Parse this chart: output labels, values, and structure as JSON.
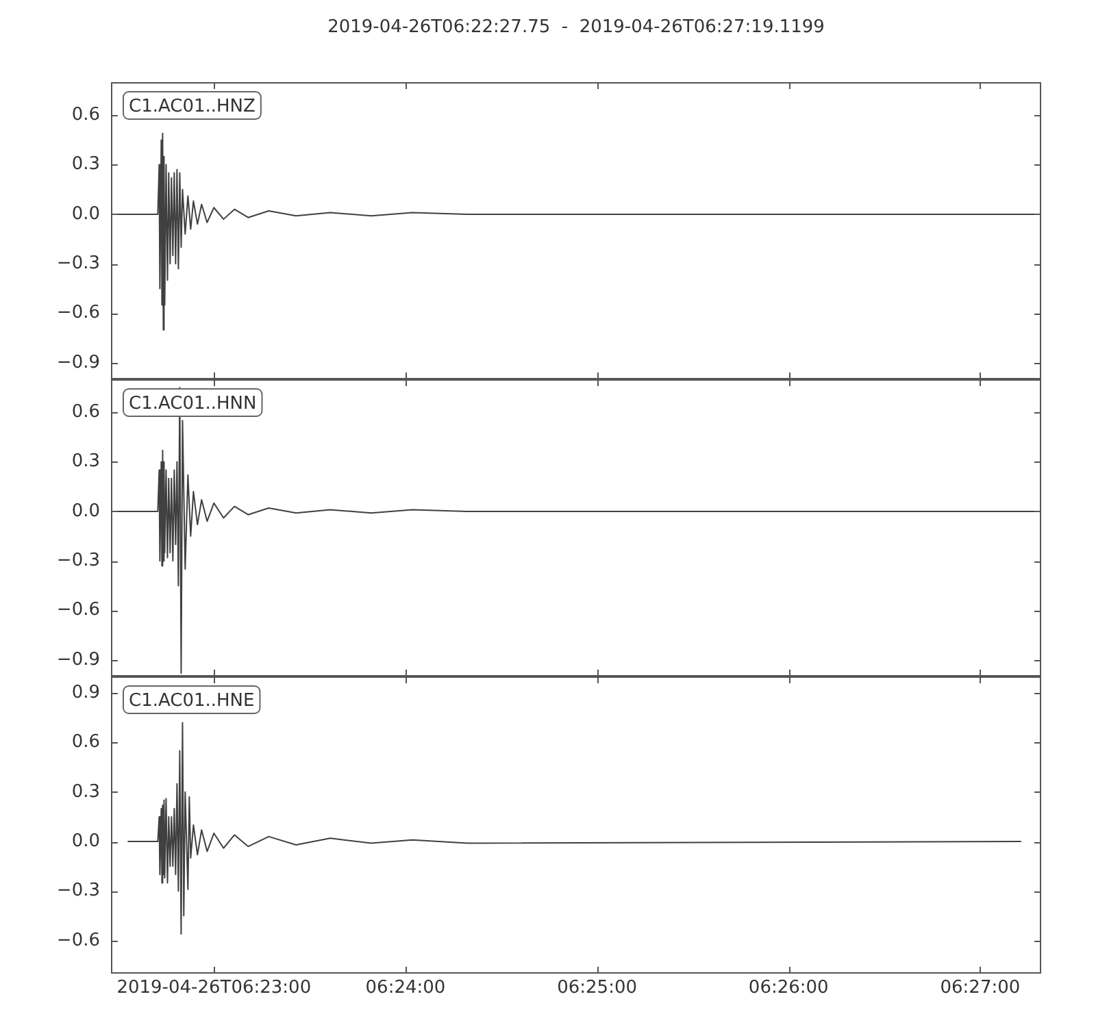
{
  "chart_data": [
    {
      "type": "line",
      "title": "2019-04-26T06:22:27.75  -  2019-04-26T06:27:19.1199",
      "annotations": [
        "C1.AC01..HNZ"
      ],
      "color": "#404040",
      "tick_labels": "y",
      "x": [
        6.37452,
        6.37845,
        6.37857,
        6.37863,
        6.37875,
        6.37881,
        6.37887,
        6.37893,
        6.37899,
        6.37905,
        6.37917,
        6.37929,
        6.3794,
        6.37952,
        6.37964,
        6.37976,
        6.37988,
        6.38,
        6.38012,
        6.38024,
        6.38036,
        6.38048,
        6.3806,
        6.38083,
        6.38107,
        6.38131,
        6.38155,
        6.3819,
        6.38226,
        6.38274,
        6.38333,
        6.38417,
        6.38512,
        6.38631,
        6.3881,
        6.39048,
        6.39345,
        6.39702,
        6.4006,
        6.40536,
        6.45476
      ],
      "values": [
        0,
        0,
        0.3,
        -0.45,
        0.45,
        -0.55,
        0.49,
        -0.7,
        0.35,
        -0.55,
        0.3,
        -0.4,
        0.25,
        -0.3,
        0.22,
        -0.25,
        0.25,
        -0.3,
        0.27,
        -0.33,
        0.25,
        -0.2,
        0.15,
        -0.12,
        0.11,
        -0.09,
        0.08,
        -0.06,
        0.06,
        -0.05,
        0.04,
        -0.03,
        0.03,
        -0.02,
        0.02,
        -0.01,
        0.01,
        -0.01,
        0.01,
        0,
        0
      ],
      "xlim": [
        6.374375,
        6.455311
      ],
      "xticks": [
        {
          "value": 6.383333,
          "label": null
        },
        {
          "value": 6.4,
          "label": null
        },
        {
          "value": 6.416667,
          "label": null
        },
        {
          "value": 6.433333,
          "label": null
        },
        {
          "value": 6.45,
          "label": null
        }
      ],
      "ylim": [
        -1.0,
        0.8
      ],
      "yticks": [
        0.6,
        0.3,
        {
          "value": 0,
          "label": "0.0"
        },
        {
          "value": -0.3,
          "label": "−0.3"
        },
        {
          "value": -0.6,
          "label": "−0.6"
        },
        {
          "value": -0.9,
          "label": "−0.9"
        }
      ]
    },
    {
      "type": "line",
      "annotations": [
        "C1.AC01..HNN"
      ],
      "color": "#404040",
      "tick_labels": "y",
      "x": [
        6.37452,
        6.37845,
        6.37857,
        6.37863,
        6.37875,
        6.37881,
        6.37887,
        6.37893,
        6.37899,
        6.37905,
        6.37917,
        6.37929,
        6.3794,
        6.37952,
        6.37964,
        6.37976,
        6.37988,
        6.38,
        6.38012,
        6.38024,
        6.38036,
        6.38048,
        6.3806,
        6.38083,
        6.38107,
        6.38131,
        6.38155,
        6.3819,
        6.38226,
        6.38274,
        6.38333,
        6.38417,
        6.38512,
        6.38631,
        6.3881,
        6.39048,
        6.39345,
        6.39702,
        6.4006,
        6.40536,
        6.45525
      ],
      "values": [
        0,
        0,
        0.25,
        -0.3,
        0.3,
        -0.33,
        0.37,
        -0.3,
        0.3,
        -0.25,
        0.25,
        -0.28,
        0.2,
        -0.25,
        0.2,
        -0.3,
        0.25,
        -0.2,
        0.3,
        -0.45,
        0.75,
        -0.98,
        0.55,
        -0.35,
        0.22,
        -0.15,
        0.12,
        -0.08,
        0.07,
        -0.06,
        0.05,
        -0.04,
        0.03,
        -0.02,
        0.02,
        -0.01,
        0.01,
        -0.01,
        0.01,
        0,
        0
      ],
      "xlim": [
        6.374375,
        6.455311
      ],
      "xticks": [
        {
          "value": 6.383333,
          "label": null
        },
        {
          "value": 6.4,
          "label": null
        },
        {
          "value": 6.416667,
          "label": null
        },
        {
          "value": 6.433333,
          "label": null
        },
        {
          "value": 6.45,
          "label": null
        }
      ],
      "ylim": [
        -1.0,
        0.8
      ],
      "yticks": [
        0.6,
        0.3,
        {
          "value": 0,
          "label": "0.0"
        },
        {
          "value": -0.3,
          "label": "−0.3"
        },
        {
          "value": -0.6,
          "label": "−0.6"
        },
        {
          "value": -0.9,
          "label": "−0.9"
        }
      ]
    },
    {
      "type": "line",
      "annotations": [
        "C1.AC01..HNE"
      ],
      "color": "#404040",
      "x": [
        6.37583,
        6.37845,
        6.37857,
        6.37863,
        6.37875,
        6.37881,
        6.37887,
        6.37893,
        6.37899,
        6.37905,
        6.37917,
        6.37929,
        6.3794,
        6.37952,
        6.37964,
        6.37976,
        6.37988,
        6.38,
        6.38012,
        6.38024,
        6.38036,
        6.38048,
        6.3806,
        6.38071,
        6.38083,
        6.38107,
        6.38119,
        6.38131,
        6.38155,
        6.3819,
        6.38226,
        6.38274,
        6.38333,
        6.38417,
        6.38512,
        6.38631,
        6.3881,
        6.39048,
        6.39345,
        6.39702,
        6.4006,
        6.40536,
        6.45357
      ],
      "values": [
        0,
        0,
        0.15,
        -0.2,
        0.2,
        -0.25,
        0.22,
        -0.2,
        0.25,
        -0.22,
        0.26,
        -0.25,
        0.15,
        -0.15,
        0.15,
        -0.15,
        0.2,
        -0.2,
        0.35,
        -0.3,
        0.55,
        -0.56,
        0.72,
        -0.45,
        0.3,
        -0.29,
        0.27,
        -0.1,
        0.1,
        -0.08,
        0.07,
        -0.06,
        0.05,
        -0.04,
        0.04,
        -0.03,
        0.03,
        -0.02,
        0.02,
        -0.01,
        0.01,
        -0.01,
        0
      ],
      "xlim": [
        6.374375,
        6.455311
      ],
      "xticks": [
        {
          "value": 6.383333,
          "label": "2019-04-26T06:23:00"
        },
        {
          "value": 6.4,
          "label": "06:24:00"
        },
        {
          "value": 6.416667,
          "label": "06:25:00"
        },
        {
          "value": 6.433333,
          "label": "06:26:00"
        },
        {
          "value": 6.45,
          "label": "06:27:00"
        }
      ],
      "ylim": [
        -0.8,
        1.0
      ],
      "yticks": [
        0.9,
        0.6,
        0.3,
        {
          "value": 0,
          "label": "0.0"
        },
        {
          "value": -0.3,
          "label": "−0.3"
        },
        {
          "value": -0.6,
          "label": "−0.6"
        }
      ]
    }
  ]
}
